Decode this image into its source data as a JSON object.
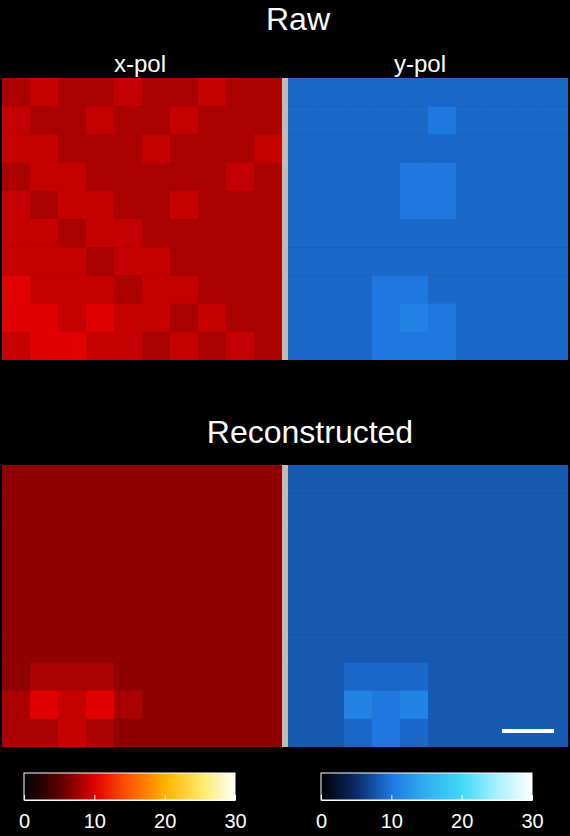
{
  "chart_data": {
    "type": "heatmap",
    "sections": [
      {
        "title": "Raw",
        "panels": [
          {
            "label": "x-pol",
            "cells": [
              [
                8,
                9,
                8,
                8,
                9,
                8,
                8,
                9,
                8,
                8
              ],
              [
                9,
                8,
                8,
                9,
                8,
                8,
                9,
                8,
                8,
                8
              ],
              [
                9,
                9,
                8,
                8,
                8,
                9,
                8,
                8,
                8,
                9
              ],
              [
                8,
                9,
                9,
                8,
                8,
                8,
                8,
                8,
                9,
                8
              ],
              [
                9,
                8,
                9,
                9,
                8,
                8,
                9,
                8,
                8,
                8
              ],
              [
                9,
                9,
                8,
                9,
                9,
                8,
                8,
                8,
                8,
                8
              ],
              [
                9,
                9,
                9,
                8,
                9,
                9,
                8,
                8,
                8,
                8
              ],
              [
                10,
                9,
                9,
                9,
                8,
                9,
                9,
                8,
                8,
                8
              ],
              [
                10,
                10,
                9,
                10,
                9,
                9,
                8,
                9,
                8,
                8
              ],
              [
                9,
                10,
                10,
                9,
                9,
                8,
                9,
                8,
                9,
                8
              ]
            ]
          },
          {
            "label": "y-pol",
            "cells": [
              [
                9,
                9,
                9,
                9,
                9,
                9,
                9,
                9,
                9,
                9
              ],
              [
                9,
                9,
                9,
                9,
                9,
                10,
                9,
                9,
                9,
                9
              ],
              [
                9,
                9,
                9,
                9,
                9,
                9,
                9,
                9,
                9,
                9
              ],
              [
                9,
                9,
                9,
                9,
                10,
                10,
                9,
                9,
                9,
                9
              ],
              [
                9,
                9,
                9,
                9,
                10,
                10,
                9,
                9,
                9,
                9
              ],
              [
                9,
                9,
                9,
                9,
                9,
                9,
                9,
                9,
                9,
                9
              ],
              [
                9,
                9,
                9,
                9,
                9,
                9,
                9,
                9,
                9,
                9
              ],
              [
                9,
                9,
                9,
                10,
                10,
                9,
                9,
                9,
                9,
                9
              ],
              [
                9,
                9,
                9,
                10,
                11,
                10,
                9,
                9,
                9,
                9
              ],
              [
                9,
                9,
                9,
                10,
                10,
                10,
                9,
                9,
                9,
                9
              ]
            ]
          }
        ]
      },
      {
        "title": "Reconstructed",
        "panels": [
          {
            "cells": [
              [
                7,
                7,
                7,
                7,
                7,
                7,
                7,
                7,
                7,
                7
              ],
              [
                7,
                7,
                7,
                7,
                7,
                7,
                7,
                7,
                7,
                7
              ],
              [
                7,
                7,
                7,
                7,
                7,
                7,
                7,
                7,
                7,
                7
              ],
              [
                7,
                7,
                7,
                7,
                7,
                7,
                7,
                7,
                7,
                7
              ],
              [
                7,
                7,
                7,
                7,
                7,
                7,
                7,
                7,
                7,
                7
              ],
              [
                7,
                7,
                7,
                7,
                7,
                7,
                7,
                7,
                7,
                7
              ],
              [
                7,
                7,
                7,
                7,
                7,
                7,
                7,
                7,
                7,
                7
              ],
              [
                7,
                8,
                8,
                8,
                7,
                7,
                7,
                7,
                7,
                7
              ],
              [
                8,
                10,
                9,
                10,
                8,
                7,
                7,
                7,
                7,
                7
              ],
              [
                8,
                8,
                9,
                8,
                7,
                7,
                7,
                7,
                7,
                7
              ]
            ]
          },
          {
            "cells": [
              [
                8,
                8,
                8,
                8,
                8,
                8,
                8,
                8,
                8,
                8
              ],
              [
                8,
                8,
                8,
                8,
                8,
                8,
                8,
                8,
                8,
                8
              ],
              [
                8,
                8,
                8,
                8,
                8,
                8,
                8,
                8,
                8,
                8
              ],
              [
                8,
                8,
                8,
                8,
                8,
                8,
                8,
                8,
                8,
                8
              ],
              [
                8,
                8,
                8,
                8,
                8,
                8,
                8,
                8,
                8,
                8
              ],
              [
                8,
                8,
                8,
                8,
                8,
                8,
                8,
                8,
                8,
                8
              ],
              [
                8,
                8,
                8,
                8,
                8,
                8,
                8,
                8,
                8,
                8
              ],
              [
                8,
                8,
                9,
                9,
                9,
                8,
                8,
                8,
                8,
                8
              ],
              [
                8,
                8,
                11,
                10,
                11,
                8,
                8,
                8,
                8,
                8
              ],
              [
                8,
                8,
                9,
                10,
                9,
                8,
                8,
                8,
                8,
                8
              ]
            ]
          }
        ]
      }
    ],
    "colorbars": [
      {
        "colors": [
          "#000000",
          "#5a0000",
          "#e00000",
          "#ff5a00",
          "#ffb000",
          "#ffe860",
          "#ffffff"
        ],
        "range": [
          0,
          30
        ],
        "ticks": [
          0,
          10,
          20,
          30
        ]
      },
      {
        "colors": [
          "#000000",
          "#0a2a6a",
          "#1e78e0",
          "#30b0f0",
          "#40d8f8",
          "#a8f0ff",
          "#ffffff"
        ],
        "range": [
          0,
          30
        ],
        "ticks": [
          0,
          10,
          20,
          30
        ]
      }
    ]
  }
}
